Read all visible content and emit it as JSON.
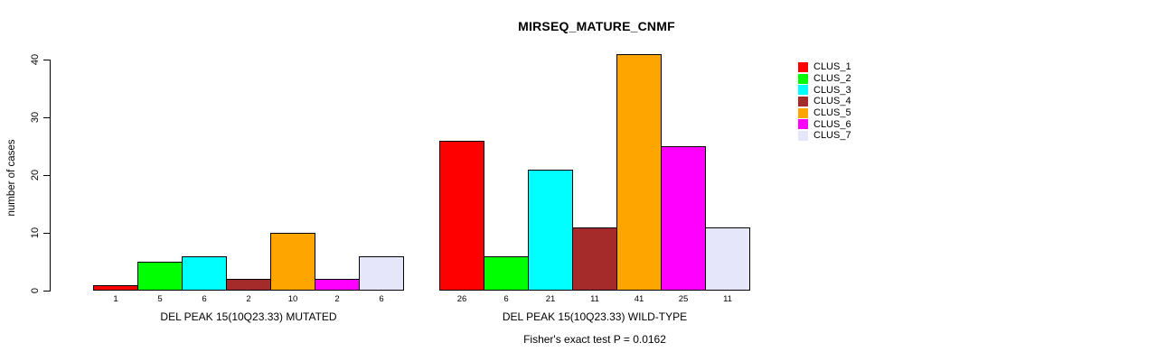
{
  "chart_data": {
    "type": "bar",
    "title": "MIRSEQ_MATURE_CNMF",
    "ylabel": "number of cases",
    "xlabel": "",
    "ylim": [
      0,
      40
    ],
    "yticks": [
      0,
      10,
      20,
      30,
      40
    ],
    "grid": false,
    "legend_position": "right",
    "background": "#FFFFFF",
    "bar_border_color": "#000000",
    "categories": [
      "DEL PEAK 15(10Q23.33) MUTATED",
      "DEL PEAK 15(10Q23.33) WILD-TYPE"
    ],
    "series": [
      {
        "name": "CLUS_1",
        "color": "#FF0000",
        "values": [
          1,
          26
        ]
      },
      {
        "name": "CLUS_2",
        "color": "#00FF00",
        "values": [
          5,
          6
        ]
      },
      {
        "name": "CLUS_3",
        "color": "#00FFFF",
        "values": [
          6,
          21
        ]
      },
      {
        "name": "CLUS_4",
        "color": "#A52A2A",
        "values": [
          2,
          11
        ]
      },
      {
        "name": "CLUS_5",
        "color": "#FFA500",
        "values": [
          10,
          41
        ]
      },
      {
        "name": "CLUS_6",
        "color": "#FF00FF",
        "values": [
          2,
          25
        ]
      },
      {
        "name": "CLUS_7",
        "color": "#E6E6FA",
        "values": [
          6,
          11
        ]
      }
    ],
    "bar_value_labels_shown": true,
    "annotation": "Fisher's exact test P = 0.0162"
  }
}
